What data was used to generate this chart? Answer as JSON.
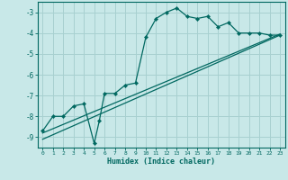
{
  "xlabel": "Humidex (Indice chaleur)",
  "bg_color": "#c8e8e8",
  "grid_color": "#a8d0d0",
  "line_color": "#006860",
  "xlim": [
    -0.5,
    23.5
  ],
  "ylim": [
    -9.5,
    -2.5
  ],
  "yticks": [
    -9,
    -8,
    -7,
    -6,
    -5,
    -4,
    -3
  ],
  "xticks": [
    0,
    1,
    2,
    3,
    4,
    5,
    6,
    7,
    8,
    9,
    10,
    11,
    12,
    13,
    14,
    15,
    16,
    17,
    18,
    19,
    20,
    21,
    22,
    23
  ],
  "curve1_x": [
    0,
    1,
    2,
    3,
    4,
    5,
    5.5,
    6,
    7,
    8,
    9,
    10,
    11,
    12,
    13,
    14,
    15,
    16,
    17,
    18,
    19,
    20,
    21,
    22,
    23
  ],
  "curve1_y": [
    -8.7,
    -8.0,
    -8.0,
    -7.5,
    -7.4,
    -9.3,
    -8.2,
    -6.9,
    -6.9,
    -6.5,
    -6.4,
    -4.2,
    -3.3,
    -3.0,
    -2.8,
    -3.2,
    -3.3,
    -3.2,
    -3.7,
    -3.5,
    -4.0,
    -4.0,
    -4.0,
    -4.1,
    -4.1
  ],
  "curve2_x": [
    0,
    23
  ],
  "curve2_y": [
    -8.8,
    -4.05
  ],
  "curve3_x": [
    0,
    23
  ],
  "curve3_y": [
    -9.1,
    -4.1
  ]
}
